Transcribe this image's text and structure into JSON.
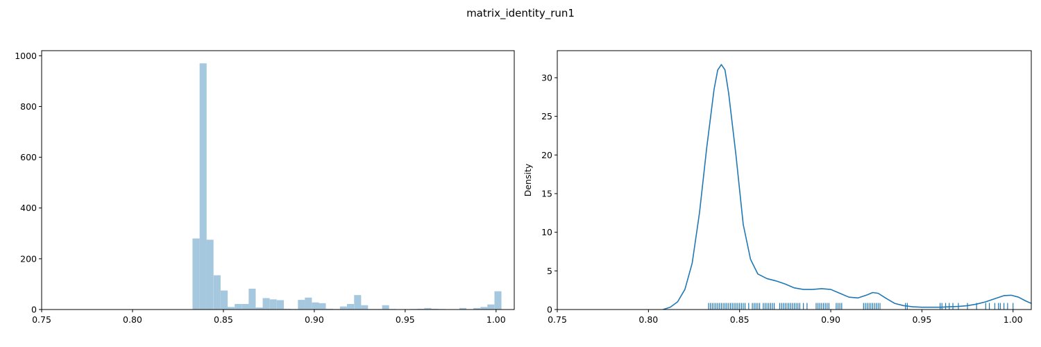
{
  "figure": {
    "suptitle": "matrix_identity_run1"
  },
  "colors": {
    "hist_fill": "#a6c8df",
    "line": "#1f77b4",
    "rug": "#1f77b4",
    "axis": "#000000"
  },
  "chart_data": [
    {
      "type": "bar",
      "subtype": "histogram",
      "xlabel": "",
      "ylabel": "",
      "xlim": [
        0.75,
        1.01
      ],
      "ylim": [
        0,
        1020
      ],
      "xticks": [
        0.75,
        0.8,
        0.85,
        0.9,
        0.95,
        1.0
      ],
      "xtick_labels": [
        "0.75",
        "0.80",
        "0.85",
        "0.90",
        "0.95",
        "1.00"
      ],
      "yticks": [
        0,
        200,
        400,
        600,
        800,
        1000
      ],
      "ytick_labels": [
        "0",
        "200",
        "400",
        "600",
        "800",
        "1000"
      ],
      "bin_width": 0.00386,
      "bins": [
        {
          "x": 0.833,
          "y": 280
        },
        {
          "x": 0.8369,
          "y": 970
        },
        {
          "x": 0.8407,
          "y": 275
        },
        {
          "x": 0.8446,
          "y": 135
        },
        {
          "x": 0.8485,
          "y": 75
        },
        {
          "x": 0.8523,
          "y": 10
        },
        {
          "x": 0.8562,
          "y": 22
        },
        {
          "x": 0.8601,
          "y": 22
        },
        {
          "x": 0.8639,
          "y": 82
        },
        {
          "x": 0.8678,
          "y": 8
        },
        {
          "x": 0.8716,
          "y": 45
        },
        {
          "x": 0.8755,
          "y": 40
        },
        {
          "x": 0.8794,
          "y": 37
        },
        {
          "x": 0.8832,
          "y": 3
        },
        {
          "x": 0.8871,
          "y": 2
        },
        {
          "x": 0.891,
          "y": 38
        },
        {
          "x": 0.8948,
          "y": 47
        },
        {
          "x": 0.8987,
          "y": 28
        },
        {
          "x": 0.9025,
          "y": 25
        },
        {
          "x": 0.9064,
          "y": 3
        },
        {
          "x": 0.9103,
          "y": 2
        },
        {
          "x": 0.9141,
          "y": 12
        },
        {
          "x": 0.918,
          "y": 22
        },
        {
          "x": 0.9219,
          "y": 57
        },
        {
          "x": 0.9257,
          "y": 17
        },
        {
          "x": 0.9296,
          "y": 2
        },
        {
          "x": 0.9334,
          "y": 2
        },
        {
          "x": 0.9373,
          "y": 17
        },
        {
          "x": 0.9412,
          "y": 2
        },
        {
          "x": 0.945,
          "y": 1
        },
        {
          "x": 0.9489,
          "y": 1
        },
        {
          "x": 0.9528,
          "y": 2
        },
        {
          "x": 0.9566,
          "y": 3
        },
        {
          "x": 0.9605,
          "y": 6
        },
        {
          "x": 0.9643,
          "y": 3
        },
        {
          "x": 0.9682,
          "y": 2
        },
        {
          "x": 0.9721,
          "y": 1
        },
        {
          "x": 0.9759,
          "y": 1
        },
        {
          "x": 0.9798,
          "y": 6
        },
        {
          "x": 0.9837,
          "y": 1
        },
        {
          "x": 0.9875,
          "y": 6
        },
        {
          "x": 0.9914,
          "y": 10
        },
        {
          "x": 0.9952,
          "y": 20
        },
        {
          "x": 0.9991,
          "y": 72
        }
      ]
    },
    {
      "type": "line",
      "subtype": "kde-with-rug",
      "xlabel": "",
      "ylabel": "Density",
      "xlim": [
        0.75,
        1.01
      ],
      "ylim": [
        0,
        33.5
      ],
      "xticks": [
        0.75,
        0.8,
        0.85,
        0.9,
        0.95,
        1.0
      ],
      "xtick_labels": [
        "0.75",
        "0.80",
        "0.85",
        "0.90",
        "0.95",
        "1.00"
      ],
      "yticks": [
        0,
        5,
        10,
        15,
        20,
        25,
        30
      ],
      "ytick_labels": [
        "0",
        "5",
        "10",
        "15",
        "20",
        "25",
        "30"
      ],
      "kde": {
        "x": [
          0.808,
          0.812,
          0.816,
          0.82,
          0.824,
          0.828,
          0.832,
          0.836,
          0.838,
          0.84,
          0.842,
          0.844,
          0.848,
          0.852,
          0.856,
          0.86,
          0.865,
          0.87,
          0.875,
          0.88,
          0.885,
          0.89,
          0.895,
          0.9,
          0.905,
          0.91,
          0.915,
          0.92,
          0.923,
          0.926,
          0.93,
          0.935,
          0.94,
          0.945,
          0.95,
          0.955,
          0.96,
          0.965,
          0.97,
          0.975,
          0.98,
          0.985,
          0.99,
          0.995,
          0.999,
          1.003,
          1.007,
          1.01
        ],
        "y": [
          0.0,
          0.3,
          1.0,
          2.6,
          6.0,
          12.5,
          21.0,
          28.5,
          31.0,
          31.7,
          31.0,
          28.0,
          20.0,
          11.0,
          6.5,
          4.6,
          4.0,
          3.7,
          3.3,
          2.8,
          2.6,
          2.6,
          2.7,
          2.6,
          2.1,
          1.6,
          1.5,
          1.9,
          2.2,
          2.1,
          1.5,
          0.8,
          0.5,
          0.35,
          0.3,
          0.3,
          0.3,
          0.35,
          0.4,
          0.5,
          0.7,
          1.0,
          1.4,
          1.8,
          1.85,
          1.6,
          1.1,
          0.8
        ]
      },
      "rug": [
        0.833,
        0.834,
        0.835,
        0.836,
        0.837,
        0.838,
        0.839,
        0.84,
        0.841,
        0.842,
        0.843,
        0.844,
        0.845,
        0.846,
        0.847,
        0.848,
        0.849,
        0.85,
        0.851,
        0.852,
        0.853,
        0.855,
        0.857,
        0.858,
        0.859,
        0.86,
        0.861,
        0.863,
        0.864,
        0.865,
        0.866,
        0.867,
        0.868,
        0.869,
        0.872,
        0.873,
        0.874,
        0.875,
        0.876,
        0.877,
        0.878,
        0.879,
        0.88,
        0.881,
        0.882,
        0.883,
        0.885,
        0.887,
        0.892,
        0.893,
        0.894,
        0.895,
        0.896,
        0.897,
        0.898,
        0.899,
        0.903,
        0.904,
        0.905,
        0.906,
        0.918,
        0.919,
        0.92,
        0.921,
        0.922,
        0.923,
        0.924,
        0.925,
        0.926,
        0.927,
        0.941,
        0.942,
        0.96,
        0.961,
        0.963,
        0.965,
        0.967,
        0.97,
        0.975,
        0.98,
        0.985,
        0.987,
        0.99,
        0.992,
        0.993,
        0.995,
        0.997,
        1.0
      ]
    }
  ]
}
